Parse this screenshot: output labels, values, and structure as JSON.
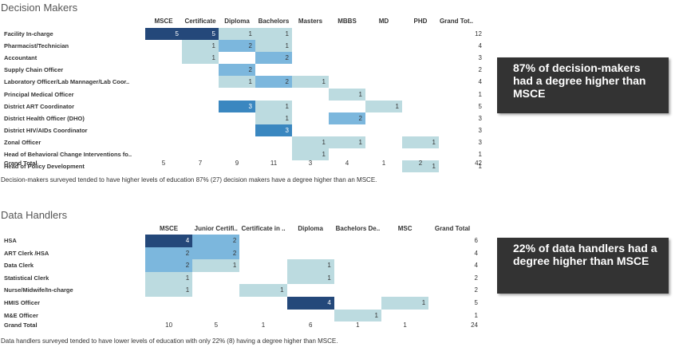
{
  "colors": {
    "c1": "#bcdbe0",
    "c2": "#7cb7dd",
    "c3": "#3a87c0",
    "c4": "#24487a",
    "c5": "#24487a"
  },
  "chart_data": [
    {
      "type": "table",
      "title": "Decision Makers",
      "columns": [
        "MSCE",
        "Certificate",
        "Diploma",
        "Bachelors",
        "Masters",
        "MBBS",
        "MD",
        "PHD",
        "Grand Tot.."
      ],
      "rows": [
        {
          "label": "Facility In-charge",
          "values": [
            5,
            5,
            1,
            1,
            null,
            null,
            null,
            null
          ],
          "total": 12
        },
        {
          "label": "Pharmacist/Technician",
          "values": [
            null,
            1,
            2,
            1,
            null,
            null,
            null,
            null
          ],
          "total": 4
        },
        {
          "label": "Accountant",
          "values": [
            null,
            1,
            null,
            2,
            null,
            null,
            null,
            null
          ],
          "total": 3
        },
        {
          "label": "Supply Chain Officer",
          "values": [
            null,
            null,
            2,
            null,
            null,
            null,
            null,
            null
          ],
          "total": 2
        },
        {
          "label": "Laboratory Officer/Lab Mannager/Lab Coor..",
          "values": [
            null,
            null,
            1,
            2,
            1,
            null,
            null,
            null
          ],
          "total": 4
        },
        {
          "label": "Principal Medical Officer",
          "values": [
            null,
            null,
            null,
            null,
            null,
            1,
            null,
            null
          ],
          "total": 1
        },
        {
          "label": "District ART Coordinator",
          "values": [
            null,
            null,
            3,
            1,
            null,
            null,
            1,
            null
          ],
          "total": 5
        },
        {
          "label": "District Health Officer (DHO)",
          "values": [
            null,
            null,
            null,
            1,
            null,
            2,
            null,
            null
          ],
          "total": 3
        },
        {
          "label": "District HIV/AIDs Coordinator",
          "values": [
            null,
            null,
            null,
            3,
            null,
            null,
            null,
            null
          ],
          "total": 3
        },
        {
          "label": "Zonal Officer",
          "values": [
            null,
            null,
            null,
            null,
            1,
            1,
            null,
            1
          ],
          "total": 3
        },
        {
          "label": "Head of Behavioral Change Interventions fo..",
          "values": [
            null,
            null,
            null,
            null,
            1,
            null,
            null,
            null
          ],
          "total": 1
        },
        {
          "label": "Head of Policy Development",
          "values": [
            null,
            null,
            null,
            null,
            null,
            null,
            null,
            1
          ],
          "total": 1
        }
      ],
      "grand_total_label": "Grand Total",
      "grand_totals": [
        5,
        7,
        9,
        11,
        3,
        4,
        1,
        2,
        42
      ],
      "caption": "Decision-makers surveyed tended to have higher levels of education 87% (27) decision makers have a degree higher than an MSCE.",
      "callout": [
        "87% of decision-makers",
        "had a degree higher than",
        "MSCE"
      ]
    },
    {
      "type": "table",
      "title": "Data Handlers",
      "columns": [
        "MSCE",
        "Junior Certifi..",
        "Certificate in ..",
        "Diploma",
        "Bachelors De..",
        "MSC",
        "Grand Total"
      ],
      "rows": [
        {
          "label": "HSA",
          "values": [
            4,
            2,
            null,
            null,
            null,
            null
          ],
          "total": 6
        },
        {
          "label": "ART Clerk /HSA",
          "values": [
            2,
            2,
            null,
            null,
            null,
            null
          ],
          "total": 4
        },
        {
          "label": "Data Clerk",
          "values": [
            2,
            1,
            null,
            1,
            null,
            null
          ],
          "total": 4
        },
        {
          "label": "Statistical Clerk",
          "values": [
            1,
            null,
            null,
            1,
            null,
            null
          ],
          "total": 2
        },
        {
          "label": "Nurse/Midwife/In-charge",
          "values": [
            1,
            null,
            1,
            null,
            null,
            null
          ],
          "total": 2
        },
        {
          "label": "HMIS Officer",
          "values": [
            null,
            null,
            null,
            4,
            null,
            1
          ],
          "total": 5
        },
        {
          "label": "M&E Officer",
          "values": [
            null,
            null,
            null,
            null,
            1,
            null
          ],
          "total": 1
        }
      ],
      "grand_total_label": "Grand Total",
      "grand_totals": [
        10,
        5,
        1,
        6,
        1,
        1,
        24
      ],
      "caption": "Data handlers surveyed tended to have lower levels of education with only 22% (8) having a degree higher than MSCE.",
      "callout": [
        "22% of data handlers had a",
        "degree higher than MSCE"
      ]
    }
  ]
}
